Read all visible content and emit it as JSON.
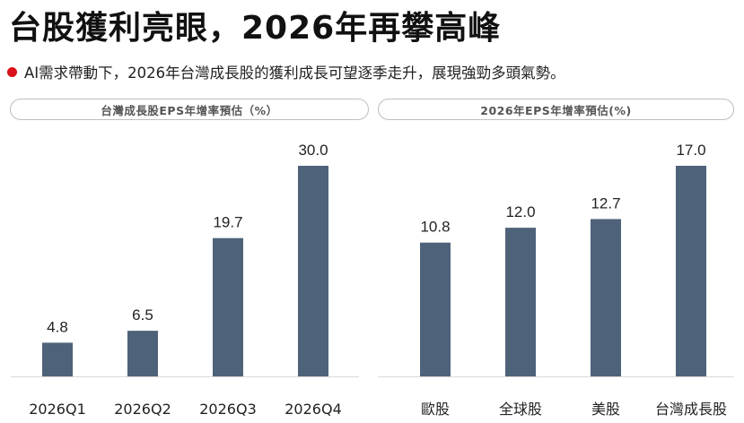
{
  "headline": "台股獲利亮眼，2026年再攀高峰",
  "subheadline": "AI需求帶動下，2026年台灣成長股的獲利成長可望逐季走升，展現強勁多頭氣勢。",
  "colors": {
    "bar": "#4e637a",
    "accent": "#d9121b",
    "baseline": "#d9d9d9"
  },
  "chart_data": [
    {
      "type": "bar",
      "title": "台灣成長股EPS年增率預估（%）",
      "categories": [
        "2026Q1",
        "2026Q2",
        "2026Q3",
        "2026Q4"
      ],
      "values": [
        4.8,
        6.5,
        19.7,
        30.0
      ],
      "value_labels": [
        "4.8",
        "6.5",
        "19.7",
        "30.0"
      ],
      "ylim": [
        0,
        30
      ],
      "grid": false
    },
    {
      "type": "bar",
      "title": "2026年EPS年增率預估(%)",
      "categories": [
        "歐股",
        "全球股",
        "美股",
        "台灣成長股"
      ],
      "values": [
        10.8,
        12.0,
        12.7,
        17.0
      ],
      "value_labels": [
        "10.8",
        "12.0",
        "12.7",
        "17.0"
      ],
      "ylim": [
        0,
        17
      ],
      "grid": false
    }
  ]
}
